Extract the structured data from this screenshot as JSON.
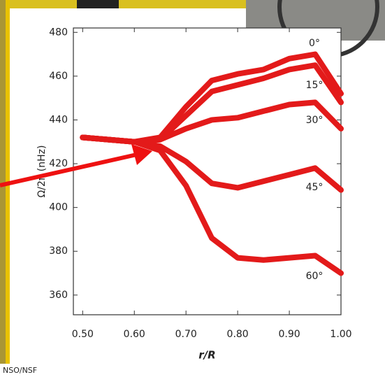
{
  "credit": "NSO/NSF",
  "chart_data": {
    "type": "line",
    "x_label": "r/R",
    "y_label": "Ω/2π (nHz)",
    "x": [
      0.5,
      0.55,
      0.6,
      0.65,
      0.7,
      0.75,
      0.8,
      0.85,
      0.9,
      0.95,
      1.0
    ],
    "series": [
      {
        "name": "0°",
        "color": "#e31a1a",
        "values": [
          432,
          431,
          430,
          432,
          446,
          458,
          461,
          463,
          468,
          470,
          452
        ]
      },
      {
        "name": "15°",
        "color": "#e31a1a",
        "values": [
          432,
          431,
          430,
          431,
          442,
          453,
          456,
          459,
          463,
          465,
          448
        ]
      },
      {
        "name": "30°",
        "color": "#e31a1a",
        "values": [
          432,
          431,
          430,
          431,
          436,
          440,
          441,
          444,
          447,
          448,
          436
        ]
      },
      {
        "name": "45°",
        "color": "#e31a1a",
        "values": [
          432,
          431,
          430,
          428,
          421,
          411,
          409,
          412,
          415,
          418,
          408
        ]
      },
      {
        "name": "60°",
        "color": "#e31a1a",
        "values": [
          432,
          431,
          430,
          426,
          410,
          386,
          377,
          376,
          377,
          378,
          370
        ]
      }
    ],
    "xlim": [
      0.482,
      1.0
    ],
    "ylim": [
      351,
      482
    ],
    "xticks": [
      {
        "value": 0.5,
        "label": "0.50"
      },
      {
        "value": 0.6,
        "label": "0.60"
      },
      {
        "value": 0.7,
        "label": "0.70"
      },
      {
        "value": 0.8,
        "label": "0.80"
      },
      {
        "value": 0.9,
        "label": "0.90"
      },
      {
        "value": 1.0,
        "label": "1.00"
      }
    ],
    "yticks": [
      360,
      380,
      400,
      420,
      440,
      460,
      480
    ],
    "grid": false
  }
}
